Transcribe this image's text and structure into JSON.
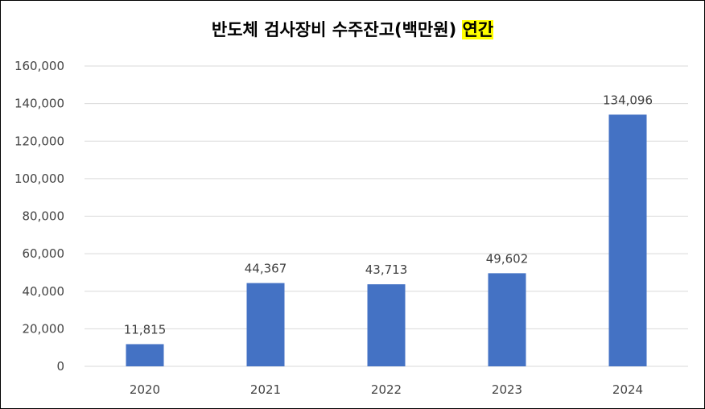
{
  "chart_data": {
    "type": "bar",
    "title": "반도체 검사장비 수주잔고(백만원)",
    "title_highlight": "연간",
    "categories": [
      "2020",
      "2021",
      "2022",
      "2023",
      "2024"
    ],
    "values": [
      11815,
      44367,
      43713,
      49602,
      134096
    ],
    "data_labels": [
      "11,815",
      "44,367",
      "43,713",
      "49,602",
      "134,096"
    ],
    "y_ticks": [
      "0",
      "20,000",
      "40,000",
      "60,000",
      "80,000",
      "100,000",
      "120,000",
      "140,000",
      "160,000"
    ],
    "ylim": [
      0,
      160000
    ],
    "grid": true,
    "legend": "none",
    "bar_color": "#4472C4",
    "grid_color": "#D9D9D9"
  }
}
